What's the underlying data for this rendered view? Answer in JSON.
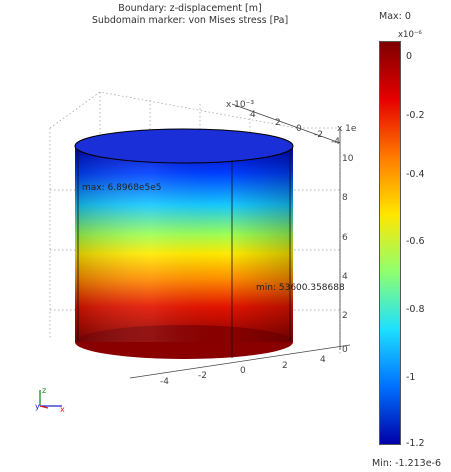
{
  "title": {
    "line1": "Boundary: z-displacement [m]",
    "line2": "Subdomain marker: von Mises stress [Pa]"
  },
  "axes": {
    "y_multiplier": "x 10⁻³",
    "x_multiplier": "x 1e",
    "x_ticks": [
      "-4",
      "-2",
      "0",
      "2",
      "4"
    ],
    "y_ticks": [
      "4",
      "2",
      "0",
      "-2",
      "-4"
    ],
    "z_ticks": [
      "10",
      "8",
      "6",
      "4",
      "2",
      "0"
    ]
  },
  "annotations": {
    "max": "max: 6.8968e5e5",
    "min": "min: 53600.358688"
  },
  "colorbar": {
    "max_label": "Max: 0",
    "min_label": "Min: -1.213e-6",
    "exponent": "x10⁻⁶",
    "ticks": [
      "0",
      "-0.2",
      "-0.4",
      "-0.6",
      "-0.8",
      "-1",
      "-1.2"
    ],
    "colors": [
      "#7f0000",
      "#e60000",
      "#ff7a00",
      "#ffe600",
      "#8fff6f",
      "#1ee0ff",
      "#0070ff",
      "#0000a8"
    ]
  },
  "triad": {
    "y_label": "y",
    "z_label": "z",
    "x_label": "x"
  }
}
